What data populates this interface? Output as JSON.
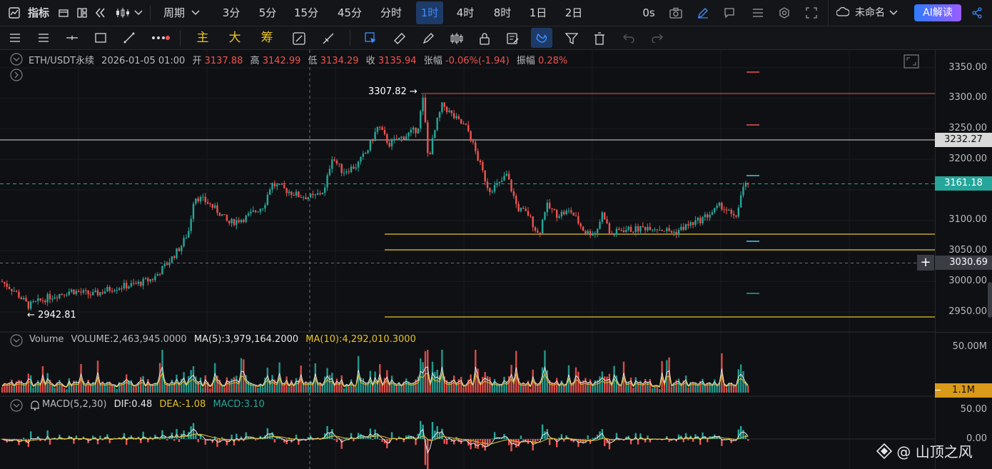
{
  "topbar": {
    "indicator_label": "指标",
    "period_label": "周期",
    "intervals": [
      "3分",
      "5分",
      "15分",
      "45分",
      "分时",
      "1时",
      "4时",
      "8时",
      "1日",
      "2日"
    ],
    "active_interval": "1时",
    "countdown": "0s",
    "layout_name": "未命名",
    "ai_button": "AI解读"
  },
  "toolbar": {
    "main_label": "主",
    "big_label": "大",
    "chip_label": "筹"
  },
  "legend": {
    "symbol": "ETH/USDT永续",
    "datetime": "2026-01-05 01:00",
    "open_label": "开",
    "open": "3137.88",
    "high_label": "高",
    "high": "3142.99",
    "low_label": "低",
    "low": "3134.29",
    "close_label": "收",
    "close": "3135.94",
    "change_label": "张幅",
    "change": "-0.06%(-1.94)",
    "amplitude_label": "振幅",
    "amplitude": "0.28%"
  },
  "price_axis": {
    "ticks": [
      "3350.00",
      "3300.00",
      "3250.00",
      "3200.00",
      "3100.00",
      "3050.00",
      "3000.00",
      "2950.00"
    ],
    "marker_white": "3232.27",
    "marker_current": "3161.18",
    "marker_crosshair": "3030.69"
  },
  "annotations": {
    "high_label": "3307.82",
    "low_label": "2942.81",
    "high_arrow": "→",
    "low_arrow": "←"
  },
  "volume": {
    "title": "Volume",
    "volume_value": "VOLUME:2,463,945.0000",
    "ma5": "MA(5):3,979,164.2000",
    "ma10": "MA(10):4,292,010.3000",
    "axis_top": "50.00M",
    "axis_tag": "1.1M"
  },
  "macd": {
    "title": "MACD(5,2,30)",
    "dif": "DIF:0.48",
    "dea": "DEA:-1.08",
    "macd": "MACD:3.10",
    "axis_top": "50.00",
    "axis_zero": "0.00"
  },
  "watermark": "@ 山顶之风",
  "colors": {
    "up": "#26a69a",
    "down": "#ef5350",
    "accent": "#3d8bff",
    "yellow": "#e6c229",
    "current_line": "#26a69a"
  }
}
